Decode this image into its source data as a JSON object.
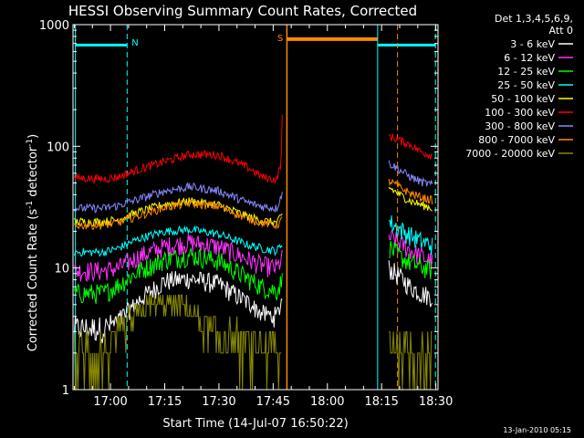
{
  "chart_data": {
    "type": "line",
    "title": "HESSI Observing Summary Count Rates, Corrected",
    "xlabel": "Start Time (14-Jul-07 16:50:22)",
    "ylabel_parts": [
      "Corrected Count Rate (s",
      "-1",
      " detector",
      "-1",
      ")"
    ],
    "ylog": true,
    "ylim": [
      1,
      1000
    ],
    "xlim_minutes": [
      -0.37,
      100.6
    ],
    "x_ticks": [
      {
        "m": 10,
        "label": "17:00"
      },
      {
        "m": 25,
        "label": "17:15"
      },
      {
        "m": 40,
        "label": "17:30"
      },
      {
        "m": 55,
        "label": "17:45"
      },
      {
        "m": 70,
        "label": "18:00"
      },
      {
        "m": 85,
        "label": "18:15"
      },
      {
        "m": 100,
        "label": "18:30"
      }
    ],
    "y_ticks": [
      {
        "v": 1,
        "label": "1"
      },
      {
        "v": 10,
        "label": "10"
      },
      {
        "v": 100,
        "label": "100"
      },
      {
        "v": 1000,
        "label": "1000"
      }
    ],
    "legend_header": [
      "Det 1,3,4,5,6,9,",
      "Att 0"
    ],
    "legend_position": "right",
    "series": [
      {
        "name": "3 - 6 keV",
        "color": "#ffffff",
        "before": [
          [
            0,
            3.2
          ],
          [
            8,
            3.2
          ],
          [
            12,
            3.6
          ],
          [
            18,
            5.5
          ],
          [
            25,
            7.8
          ],
          [
            32,
            8.2
          ],
          [
            40,
            7.4
          ],
          [
            48,
            5.2
          ],
          [
            52,
            4.2
          ],
          [
            56,
            4.0
          ],
          [
            57.5,
            5.5
          ]
        ],
        "after": [
          [
            87,
            10
          ],
          [
            90,
            8.5
          ],
          [
            93,
            7.0
          ],
          [
            96,
            6.2
          ],
          [
            99,
            5.8
          ]
        ]
      },
      {
        "name": "6 - 12 keV",
        "color": "#ff33ff",
        "before": [
          [
            0,
            9.5
          ],
          [
            8,
            9.5
          ],
          [
            12,
            10
          ],
          [
            18,
            12.5
          ],
          [
            25,
            15
          ],
          [
            32,
            16.2
          ],
          [
            40,
            15
          ],
          [
            48,
            11.8
          ],
          [
            52,
            10.5
          ],
          [
            56,
            10
          ],
          [
            57.5,
            12
          ]
        ],
        "after": [
          [
            87,
            18
          ],
          [
            90,
            16
          ],
          [
            93,
            14
          ],
          [
            96,
            12.5
          ],
          [
            99,
            11.2
          ]
        ]
      },
      {
        "name": "12 - 25 keV",
        "color": "#00ff00",
        "before": [
          [
            0,
            6.2
          ],
          [
            8,
            6.2
          ],
          [
            12,
            7.2
          ],
          [
            18,
            9.5
          ],
          [
            25,
            11.8
          ],
          [
            32,
            12.7
          ],
          [
            40,
            11.5
          ],
          [
            48,
            8.2
          ],
          [
            52,
            7.0
          ],
          [
            56,
            6.5
          ],
          [
            57.5,
            8
          ]
        ],
        "after": [
          [
            87,
            15
          ],
          [
            90,
            12.5
          ],
          [
            93,
            11
          ],
          [
            96,
            10.2
          ],
          [
            99,
            9.6
          ]
        ]
      },
      {
        "name": "25 - 50 keV",
        "color": "#00ffff",
        "before": [
          [
            0,
            13.5
          ],
          [
            8,
            13.5
          ],
          [
            12,
            14.5
          ],
          [
            18,
            17.5
          ],
          [
            25,
            20
          ],
          [
            32,
            20.7
          ],
          [
            40,
            19
          ],
          [
            48,
            15.5
          ],
          [
            52,
            14.5
          ],
          [
            56,
            13.8
          ],
          [
            57.5,
            16
          ]
        ],
        "after": [
          [
            87,
            24
          ],
          [
            90,
            21
          ],
          [
            93,
            18.5
          ],
          [
            96,
            16.5
          ],
          [
            99,
            15.5
          ]
        ]
      },
      {
        "name": "50 - 100 keV",
        "color": "#ffff00",
        "before": [
          [
            0,
            24
          ],
          [
            8,
            24
          ],
          [
            12,
            25
          ],
          [
            18,
            29
          ],
          [
            25,
            33.5
          ],
          [
            32,
            35.5
          ],
          [
            40,
            33
          ],
          [
            48,
            26.5
          ],
          [
            52,
            24.5
          ],
          [
            56,
            23.5
          ],
          [
            57.5,
            27
          ]
        ],
        "after": [
          [
            87,
            46
          ],
          [
            90,
            40
          ],
          [
            93,
            35.5
          ],
          [
            96,
            33
          ],
          [
            99,
            31
          ]
        ]
      },
      {
        "name": "100 - 300 keV",
        "color": "#ff0000",
        "before": [
          [
            0,
            55
          ],
          [
            8,
            54
          ],
          [
            12,
            56
          ],
          [
            18,
            65
          ],
          [
            25,
            75
          ],
          [
            32,
            86
          ],
          [
            40,
            85
          ],
          [
            48,
            67
          ],
          [
            52,
            56
          ],
          [
            56,
            53
          ],
          [
            57.2,
            75
          ],
          [
            57.5,
            170
          ]
        ],
        "after": [
          [
            87,
            122
          ],
          [
            90,
            112
          ],
          [
            93,
            103
          ],
          [
            96,
            90
          ],
          [
            99,
            84
          ]
        ]
      },
      {
        "name": "300 - 800 keV",
        "color": "#8888ff",
        "before": [
          [
            0,
            31
          ],
          [
            8,
            31
          ],
          [
            12,
            32.5
          ],
          [
            18,
            37
          ],
          [
            25,
            43
          ],
          [
            32,
            46.5
          ],
          [
            40,
            43
          ],
          [
            48,
            34.5
          ],
          [
            52,
            32
          ],
          [
            56,
            31
          ],
          [
            57.5,
            42
          ]
        ],
        "after": [
          [
            87,
            73
          ],
          [
            90,
            64
          ],
          [
            93,
            56
          ],
          [
            96,
            51
          ],
          [
            99,
            48
          ]
        ]
      },
      {
        "name": "800 - 7000 keV",
        "color": "#ff8800",
        "before": [
          [
            0,
            22.5
          ],
          [
            8,
            22.5
          ],
          [
            12,
            23.5
          ],
          [
            18,
            27
          ],
          [
            25,
            31.5
          ],
          [
            32,
            34
          ],
          [
            40,
            32
          ],
          [
            48,
            25.5
          ],
          [
            52,
            23.5
          ],
          [
            56,
            22.5
          ],
          [
            57.5,
            25
          ]
        ],
        "after": [
          [
            87,
            52
          ],
          [
            90,
            46
          ],
          [
            93,
            41
          ],
          [
            96,
            38
          ],
          [
            99,
            36
          ]
        ]
      },
      {
        "name": "7000 - 20000 keV",
        "color": "#888800",
        "before": [
          [
            0,
            2
          ],
          [
            8,
            2
          ],
          [
            14,
            3.2
          ],
          [
            20,
            4.8
          ],
          [
            26,
            5
          ],
          [
            32,
            4.8
          ],
          [
            36,
            3.2
          ],
          [
            42,
            2.6
          ],
          [
            48,
            2.4
          ],
          [
            56,
            2.0
          ],
          [
            57.3,
            2.0
          ]
        ],
        "after": [
          [
            87,
            2.4
          ],
          [
            90,
            2.2
          ],
          [
            93,
            2.0
          ],
          [
            96,
            1.9
          ],
          [
            99,
            1.8
          ]
        ]
      }
    ],
    "annotations": {
      "night_label": "N",
      "saa_label": "S",
      "night_bars": [
        [
          0.3,
          14.6
        ],
        [
          83.9,
          99.9
        ]
      ],
      "saa_bar": [
        58.8,
        83.9
      ],
      "bar_level": 680,
      "saa_bar_level": 760,
      "night_edges_dashed": [
        14.6,
        99.9
      ],
      "night_edges_solid": [
        0.3,
        83.9
      ],
      "saa_edges_solid": [
        58.8
      ],
      "saa_edges_dashed": [
        89.4
      ]
    }
  },
  "timestamp": "13-Jan-2010 05:15",
  "colors": {
    "background": "#000000",
    "axes": "#ffffff",
    "night": "#00ffff",
    "saa": "#ff8800"
  }
}
